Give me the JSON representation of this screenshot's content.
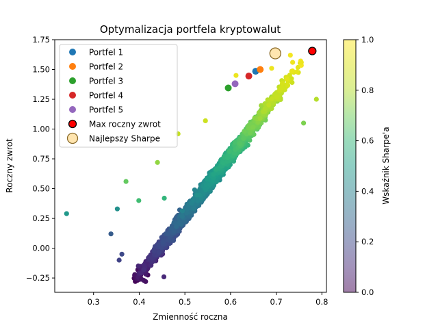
{
  "chart_data": {
    "type": "scatter",
    "title": "Optymalizacja portfela kryptowalut",
    "xlabel": "Zmienność roczna",
    "ylabel": "Roczny zwrot",
    "xlim": [
      0.215,
      0.81
    ],
    "ylim": [
      -0.37,
      1.75
    ],
    "x_ticks": [
      "0.3",
      "0.4",
      "0.5",
      "0.6",
      "0.7",
      "0.8"
    ],
    "x_tick_values": [
      0.3,
      0.4,
      0.5,
      0.6,
      0.7,
      0.8
    ],
    "y_ticks": [
      "−0.25",
      "0.00",
      "0.25",
      "0.50",
      "0.75",
      "1.00",
      "1.25",
      "1.50",
      "1.75"
    ],
    "y_tick_values": [
      -0.25,
      0.0,
      0.25,
      0.5,
      0.75,
      1.0,
      1.25,
      1.5,
      1.75
    ],
    "grid": false,
    "legend_position": "top-left",
    "colorbar": {
      "label": "Wskaźnik Sharpe'a",
      "range": [
        0.0,
        1.0
      ],
      "ticks": [
        "0.0",
        "0.2",
        "0.4",
        "0.6",
        "0.8",
        "1.0"
      ],
      "tick_values": [
        0.0,
        0.2,
        0.4,
        0.6,
        0.8,
        1.0
      ],
      "colormap": "viridis",
      "alpha": 0.5
    },
    "cloud": {
      "description_points": "random portfolios colored by Sharpe ratio",
      "count": 5000,
      "sharpe_range": [
        0.0,
        1.0
      ]
    },
    "series": [
      {
        "name": "Portfel 1",
        "color": "#1f77b4",
        "points": [
          [
            0.655,
            1.485
          ]
        ]
      },
      {
        "name": "Portfel 2",
        "color": "#ff7f0e",
        "points": [
          [
            0.665,
            1.5
          ]
        ]
      },
      {
        "name": "Portfel 3",
        "color": "#2ca02c",
        "points": [
          [
            0.595,
            1.345
          ]
        ]
      },
      {
        "name": "Portfel 4",
        "color": "#d62728",
        "points": [
          [
            0.64,
            1.445
          ]
        ]
      },
      {
        "name": "Portfel 5",
        "color": "#9467bd",
        "points": [
          [
            0.61,
            1.38
          ]
        ]
      },
      {
        "name": "Max roczny zwrot",
        "color": "#ff0000",
        "edge": "#000000",
        "points": [
          [
            0.779,
            1.655
          ]
        ]
      },
      {
        "name": "Najlepszy Sharpe",
        "color": "#ffd37a",
        "edge": "#8b6b2a",
        "points": [
          [
            0.698,
            1.635
          ]
        ]
      }
    ],
    "outliers": [
      [
        0.241,
        0.29,
        0.48
      ],
      [
        0.338,
        0.12,
        0.26
      ],
      [
        0.352,
        0.33,
        0.45
      ],
      [
        0.371,
        0.56,
        0.68
      ],
      [
        0.399,
        0.4,
        0.62
      ],
      [
        0.455,
        0.42,
        0.59
      ],
      [
        0.405,
        -0.26,
        0.05
      ],
      [
        0.41,
        -0.27,
        0.05
      ],
      [
        0.414,
        -0.28,
        0.04
      ],
      [
        0.454,
        -0.24,
        0.1
      ],
      [
        0.356,
        -0.1,
        0.18
      ],
      [
        0.362,
        -0.05,
        0.2
      ],
      [
        0.44,
        0.72,
        0.75
      ],
      [
        0.485,
        0.96,
        0.84
      ],
      [
        0.545,
        1.07,
        0.86
      ],
      [
        0.612,
        1.45,
        0.95
      ],
      [
        0.788,
        1.25,
        0.8
      ],
      [
        0.76,
        1.05,
        0.72
      ],
      [
        0.745,
        1.48,
        0.93
      ],
      [
        0.731,
        1.62,
        0.97
      ],
      [
        0.755,
        1.56,
        0.95
      ],
      [
        0.69,
        1.51,
        0.95
      ],
      [
        0.736,
        1.56,
        0.96
      ]
    ]
  }
}
